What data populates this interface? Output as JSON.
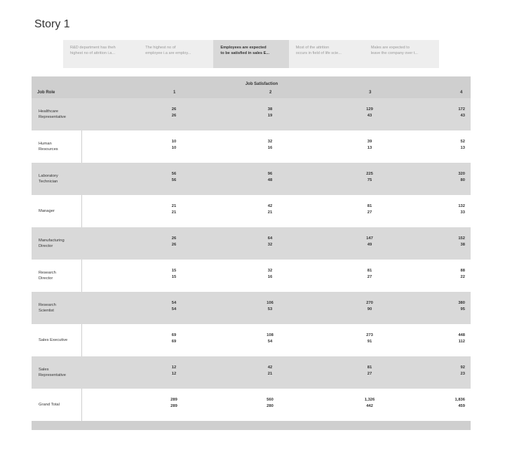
{
  "story": {
    "title": "Story 1",
    "points": [
      {
        "lines": [
          "R&D department has theh",
          "highest no of attrition i.a..."
        ],
        "active": false
      },
      {
        "lines": [
          "The highest no of",
          "employee i.a are employ..."
        ],
        "active": false
      },
      {
        "lines": [
          "Employees are expected",
          "to be satisfied in sales E..."
        ],
        "active": true
      },
      {
        "lines": [
          "Most of the attrition",
          "occurs in field of life scie..."
        ],
        "active": false
      },
      {
        "lines": [
          "Males are expected to",
          "leave the company over t..."
        ],
        "active": false
      }
    ]
  },
  "table": {
    "column_group_title": "Job Satisfaction",
    "row_header_title": "Job Role",
    "columns": [
      "1",
      "2",
      "3",
      "4"
    ],
    "rows": [
      {
        "label": [
          "Healthcare",
          "Representative"
        ],
        "values": [
          [
            "26",
            "26"
          ],
          [
            "38",
            "19"
          ],
          [
            "129",
            "43"
          ],
          [
            "172",
            "43"
          ]
        ]
      },
      {
        "label": [
          "Human",
          "Resources"
        ],
        "values": [
          [
            "10",
            "10"
          ],
          [
            "32",
            "16"
          ],
          [
            "39",
            "13"
          ],
          [
            "52",
            "13"
          ]
        ]
      },
      {
        "label": [
          "Laboratory",
          "Technician"
        ],
        "values": [
          [
            "56",
            "56"
          ],
          [
            "96",
            "48"
          ],
          [
            "225",
            "75"
          ],
          [
            "320",
            "80"
          ]
        ]
      },
      {
        "label": [
          "Manager"
        ],
        "values": [
          [
            "21",
            "21"
          ],
          [
            "42",
            "21"
          ],
          [
            "81",
            "27"
          ],
          [
            "132",
            "33"
          ]
        ]
      },
      {
        "label": [
          "Manufacturing",
          "Director"
        ],
        "values": [
          [
            "26",
            "26"
          ],
          [
            "64",
            "32"
          ],
          [
            "147",
            "49"
          ],
          [
            "152",
            "38"
          ]
        ]
      },
      {
        "label": [
          "Research",
          "Director"
        ],
        "values": [
          [
            "15",
            "15"
          ],
          [
            "32",
            "16"
          ],
          [
            "81",
            "27"
          ],
          [
            "88",
            "22"
          ]
        ]
      },
      {
        "label": [
          "Research",
          "Scientist"
        ],
        "values": [
          [
            "54",
            "54"
          ],
          [
            "106",
            "53"
          ],
          [
            "270",
            "90"
          ],
          [
            "380",
            "95"
          ]
        ]
      },
      {
        "label": [
          "Sales Executive"
        ],
        "values": [
          [
            "69",
            "69"
          ],
          [
            "108",
            "54"
          ],
          [
            "273",
            "91"
          ],
          [
            "448",
            "112"
          ]
        ]
      },
      {
        "label": [
          "Sales",
          "Representative"
        ],
        "values": [
          [
            "12",
            "12"
          ],
          [
            "42",
            "21"
          ],
          [
            "81",
            "27"
          ],
          [
            "92",
            "23"
          ]
        ]
      },
      {
        "label": [
          "Grand Total"
        ],
        "values": [
          [
            "289",
            "289"
          ],
          [
            "560",
            "280"
          ],
          [
            "1,326",
            "442"
          ],
          [
            "1,836",
            "459"
          ]
        ]
      }
    ]
  }
}
